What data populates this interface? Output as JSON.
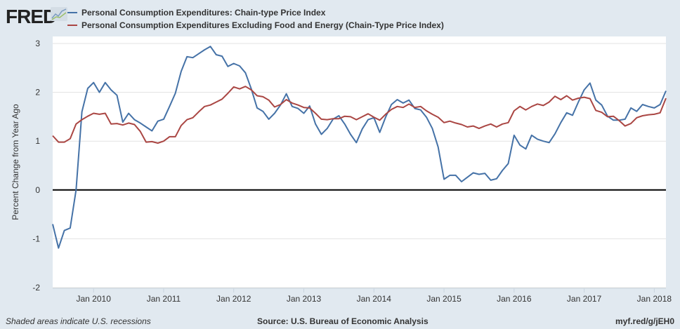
{
  "header": {
    "logo": "FRED"
  },
  "footer": {
    "recession_note": "Shaded areas indicate U.S. recessions",
    "source": "Source: U.S. Bureau of Economic Analysis",
    "short_url": "myf.red/g/jEH0"
  },
  "chart_data": {
    "type": "line",
    "title": "",
    "xlabel": "",
    "ylabel": "Percent Change from Year Ago",
    "ylim": [
      -2,
      3
    ],
    "yticks": [
      -2,
      -1,
      0,
      1,
      2,
      3
    ],
    "xlim": [
      "2009-06",
      "2018-03"
    ],
    "xticks": [
      {
        "date": "2010-01",
        "label": "Jan 2010"
      },
      {
        "date": "2011-01",
        "label": "Jan 2011"
      },
      {
        "date": "2012-01",
        "label": "Jan 2012"
      },
      {
        "date": "2013-01",
        "label": "Jan 2013"
      },
      {
        "date": "2014-01",
        "label": "Jan 2014"
      },
      {
        "date": "2015-01",
        "label": "Jan 2015"
      },
      {
        "date": "2016-01",
        "label": "Jan 2016"
      },
      {
        "date": "2017-01",
        "label": "Jan 2017"
      },
      {
        "date": "2018-01",
        "label": "Jan 2018"
      }
    ],
    "grid": true,
    "legend_position": "top",
    "x": [
      "2009-06",
      "2009-07",
      "2009-08",
      "2009-09",
      "2009-10",
      "2009-11",
      "2009-12",
      "2010-01",
      "2010-02",
      "2010-03",
      "2010-04",
      "2010-05",
      "2010-06",
      "2010-07",
      "2010-08",
      "2010-09",
      "2010-10",
      "2010-11",
      "2010-12",
      "2011-01",
      "2011-02",
      "2011-03",
      "2011-04",
      "2011-05",
      "2011-06",
      "2011-07",
      "2011-08",
      "2011-09",
      "2011-10",
      "2011-11",
      "2011-12",
      "2012-01",
      "2012-02",
      "2012-03",
      "2012-04",
      "2012-05",
      "2012-06",
      "2012-07",
      "2012-08",
      "2012-09",
      "2012-10",
      "2012-11",
      "2012-12",
      "2013-01",
      "2013-02",
      "2013-03",
      "2013-04",
      "2013-05",
      "2013-06",
      "2013-07",
      "2013-08",
      "2013-09",
      "2013-10",
      "2013-11",
      "2013-12",
      "2014-01",
      "2014-02",
      "2014-03",
      "2014-04",
      "2014-05",
      "2014-06",
      "2014-07",
      "2014-08",
      "2014-09",
      "2014-10",
      "2014-11",
      "2014-12",
      "2015-01",
      "2015-02",
      "2015-03",
      "2015-04",
      "2015-05",
      "2015-06",
      "2015-07",
      "2015-08",
      "2015-09",
      "2015-10",
      "2015-11",
      "2015-12",
      "2016-01",
      "2016-02",
      "2016-03",
      "2016-04",
      "2016-05",
      "2016-06",
      "2016-07",
      "2016-08",
      "2016-09",
      "2016-10",
      "2016-11",
      "2016-12",
      "2017-01",
      "2017-02",
      "2017-03",
      "2017-04",
      "2017-05",
      "2017-06",
      "2017-07",
      "2017-08",
      "2017-09",
      "2017-10",
      "2017-11",
      "2017-12",
      "2018-01",
      "2018-02",
      "2018-03"
    ],
    "series": [
      {
        "name": "Personal Consumption Expenditures: Chain-type Price Index",
        "color": "#4572a7",
        "values": [
          -0.7,
          -1.19,
          -0.83,
          -0.78,
          0.0,
          1.6,
          2.08,
          2.2,
          2.0,
          2.2,
          2.05,
          1.94,
          1.39,
          1.57,
          1.44,
          1.37,
          1.29,
          1.21,
          1.41,
          1.45,
          1.71,
          1.98,
          2.43,
          2.73,
          2.71,
          2.79,
          2.87,
          2.94,
          2.77,
          2.74,
          2.53,
          2.59,
          2.54,
          2.4,
          2.07,
          1.68,
          1.61,
          1.45,
          1.57,
          1.74,
          1.97,
          1.71,
          1.67,
          1.57,
          1.72,
          1.35,
          1.14,
          1.26,
          1.45,
          1.52,
          1.35,
          1.14,
          0.97,
          1.25,
          1.44,
          1.48,
          1.18,
          1.49,
          1.75,
          1.85,
          1.78,
          1.84,
          1.67,
          1.64,
          1.49,
          1.26,
          0.88,
          0.22,
          0.3,
          0.3,
          0.17,
          0.26,
          0.35,
          0.32,
          0.34,
          0.2,
          0.23,
          0.4,
          0.54,
          1.12,
          0.92,
          0.84,
          1.12,
          1.04,
          1.0,
          0.97,
          1.15,
          1.38,
          1.58,
          1.53,
          1.8,
          2.05,
          2.19,
          1.84,
          1.74,
          1.51,
          1.43,
          1.43,
          1.45,
          1.68,
          1.61,
          1.75,
          1.71,
          1.68,
          1.75,
          2.03
        ]
      },
      {
        "name": "Personal Consumption Expenditures Excluding Food and Energy (Chain-Type Price Index)",
        "color": "#aa4643",
        "values": [
          1.11,
          0.98,
          0.98,
          1.05,
          1.35,
          1.44,
          1.51,
          1.57,
          1.55,
          1.57,
          1.35,
          1.36,
          1.33,
          1.37,
          1.34,
          1.2,
          0.98,
          0.99,
          0.96,
          1.0,
          1.09,
          1.09,
          1.32,
          1.44,
          1.48,
          1.6,
          1.71,
          1.74,
          1.8,
          1.86,
          1.98,
          2.11,
          2.07,
          2.12,
          2.05,
          1.93,
          1.91,
          1.84,
          1.7,
          1.75,
          1.85,
          1.78,
          1.74,
          1.69,
          1.68,
          1.57,
          1.45,
          1.44,
          1.46,
          1.46,
          1.51,
          1.5,
          1.44,
          1.5,
          1.56,
          1.49,
          1.43,
          1.55,
          1.65,
          1.71,
          1.69,
          1.76,
          1.69,
          1.71,
          1.62,
          1.55,
          1.49,
          1.38,
          1.41,
          1.37,
          1.34,
          1.29,
          1.31,
          1.26,
          1.31,
          1.35,
          1.29,
          1.35,
          1.38,
          1.62,
          1.71,
          1.64,
          1.71,
          1.76,
          1.73,
          1.8,
          1.92,
          1.85,
          1.93,
          1.84,
          1.88,
          1.9,
          1.87,
          1.63,
          1.59,
          1.5,
          1.51,
          1.42,
          1.31,
          1.36,
          1.48,
          1.52,
          1.54,
          1.55,
          1.58,
          1.88
        ]
      }
    ]
  }
}
